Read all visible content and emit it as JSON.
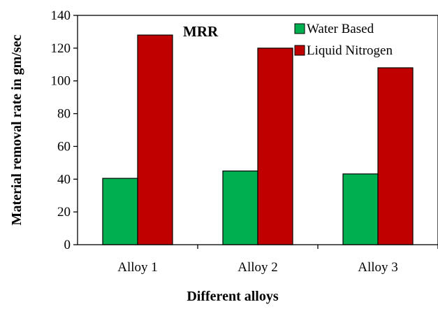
{
  "chart_data": {
    "type": "bar",
    "title": "MRR",
    "xlabel": "Different alloys",
    "ylabel": "Material removal rate in gm/sec",
    "categories": [
      "Alloy 1",
      "Alloy 2",
      "Alloy 3"
    ],
    "series": [
      {
        "name": "Water Based",
        "color": "#00b050",
        "values": [
          40.5,
          45,
          43.2
        ]
      },
      {
        "name": "Liquid Nitrogen",
        "color": "#c00000",
        "values": [
          128,
          120,
          108
        ]
      }
    ],
    "ylim": [
      0,
      140
    ],
    "yticks": [
      "0",
      "20",
      "40",
      "60",
      "80",
      "100",
      "120",
      "140"
    ],
    "grid": false,
    "legend_position": "top-right"
  }
}
